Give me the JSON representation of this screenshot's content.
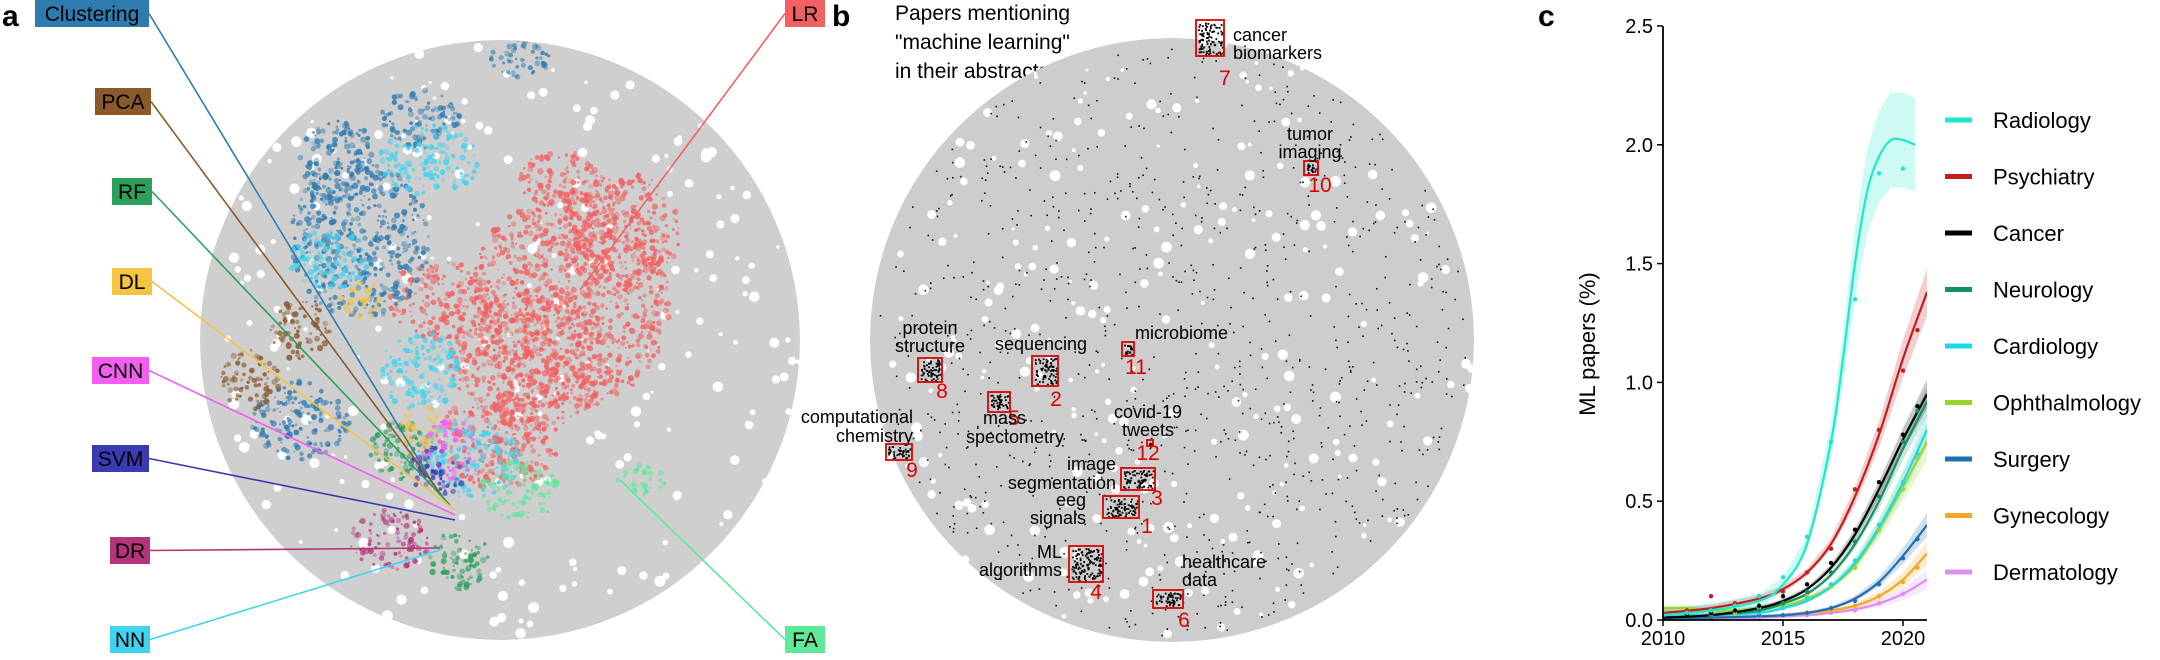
{
  "panel_a": {
    "letter": "a",
    "methods": [
      {
        "label": "Clustering",
        "color": "#2e7bb0"
      },
      {
        "label": "PCA",
        "color": "#8b5a2b"
      },
      {
        "label": "RF",
        "color": "#2ba05a"
      },
      {
        "label": "DL",
        "color": "#f5c242"
      },
      {
        "label": "CNN",
        "color": "#f15ef0"
      },
      {
        "label": "SVM",
        "color": "#3a3ab2"
      },
      {
        "label": "DR",
        "color": "#b5337a"
      },
      {
        "label": "NN",
        "color": "#3fd3f0"
      },
      {
        "label": "LR",
        "color": "#f26060"
      },
      {
        "label": "FA",
        "color": "#5fe89a"
      }
    ]
  },
  "panel_b": {
    "letter": "b",
    "title_lines": [
      "Papers mentioning",
      "\"machine learning\"",
      "in their abstracts"
    ],
    "topics": [
      {
        "num": "1",
        "lines": [
          "eeg",
          "signals"
        ]
      },
      {
        "num": "2",
        "lines": [
          "sequencing"
        ]
      },
      {
        "num": "3",
        "lines": [
          "image",
          "segmentation"
        ]
      },
      {
        "num": "4",
        "lines": [
          "ML",
          "algorithms"
        ]
      },
      {
        "num": "5",
        "lines": [
          "mass",
          "spectometry"
        ]
      },
      {
        "num": "6",
        "lines": [
          "healthcare",
          "data"
        ]
      },
      {
        "num": "7",
        "lines": [
          "cancer",
          "biomarkers"
        ]
      },
      {
        "num": "8",
        "lines": [
          "protein",
          "structure"
        ]
      },
      {
        "num": "9",
        "lines": [
          "computational",
          "chemistry"
        ]
      },
      {
        "num": "10",
        "lines": [
          "tumor",
          "imaging"
        ]
      },
      {
        "num": "11",
        "lines": [
          "microbiome"
        ]
      },
      {
        "num": "12",
        "lines": [
          "covid-19",
          "tweets"
        ]
      }
    ]
  },
  "chart_data": {
    "type": "line",
    "panel_letter": "c",
    "ylabel": "ML papers (%)",
    "xlim": [
      2010,
      2021
    ],
    "ylim": [
      0,
      2.5
    ],
    "xticks": [
      2010,
      2015,
      2020
    ],
    "yticks": [
      "0.0",
      "0.5",
      "1.0",
      "1.5",
      "2.0",
      "2.5"
    ],
    "legend_position": "right",
    "series": [
      {
        "name": "Radiology",
        "color": "#1de8c8",
        "points": [
          [
            2010,
            0.02
          ],
          [
            2011,
            0.03
          ],
          [
            2012,
            0.04
          ],
          [
            2013,
            0.06
          ],
          [
            2014,
            0.1
          ],
          [
            2015,
            0.18
          ],
          [
            2016,
            0.35
          ],
          [
            2017,
            0.75
          ],
          [
            2018,
            1.35
          ],
          [
            2019,
            1.88
          ],
          [
            2020,
            1.9
          ]
        ],
        "fit": [
          [
            2010,
            0.02
          ],
          [
            2012,
            0.04
          ],
          [
            2014,
            0.08
          ],
          [
            2015,
            0.15
          ],
          [
            2016,
            0.32
          ],
          [
            2017,
            0.75
          ],
          [
            2017.5,
            1.1
          ],
          [
            2018,
            1.5
          ],
          [
            2018.5,
            1.8
          ],
          [
            2019,
            1.95
          ],
          [
            2019.5,
            2.02
          ],
          [
            2020,
            2.02
          ],
          [
            2020.5,
            2.0
          ]
        ],
        "band": 0.2
      },
      {
        "name": "Psychiatry",
        "color": "#c21e1e",
        "points": [
          [
            2010,
            0.02
          ],
          [
            2011,
            0.04
          ],
          [
            2012,
            0.1
          ],
          [
            2013,
            0.07
          ],
          [
            2014,
            0.1
          ],
          [
            2015,
            0.12
          ],
          [
            2016,
            0.2
          ],
          [
            2017,
            0.3
          ],
          [
            2018,
            0.55
          ],
          [
            2019,
            0.8
          ],
          [
            2020,
            1.05
          ],
          [
            2020.6,
            1.22
          ]
        ],
        "fit": [
          [
            2010,
            0.03
          ],
          [
            2012,
            0.05
          ],
          [
            2014,
            0.09
          ],
          [
            2015,
            0.13
          ],
          [
            2016,
            0.2
          ],
          [
            2017,
            0.32
          ],
          [
            2018,
            0.52
          ],
          [
            2019,
            0.78
          ],
          [
            2020,
            1.1
          ],
          [
            2021,
            1.38
          ]
        ],
        "band": 0.1
      },
      {
        "name": "Cancer",
        "color": "#000000",
        "points": [
          [
            2010,
            0.01
          ],
          [
            2011,
            0.02
          ],
          [
            2012,
            0.03
          ],
          [
            2013,
            0.04
          ],
          [
            2014,
            0.06
          ],
          [
            2015,
            0.1
          ],
          [
            2016,
            0.15
          ],
          [
            2017,
            0.24
          ],
          [
            2018,
            0.38
          ],
          [
            2019,
            0.58
          ],
          [
            2020,
            0.78
          ],
          [
            2020.6,
            0.9
          ]
        ],
        "fit": [
          [
            2010,
            0.01
          ],
          [
            2012,
            0.02
          ],
          [
            2014,
            0.05
          ],
          [
            2015,
            0.08
          ],
          [
            2016,
            0.13
          ],
          [
            2017,
            0.22
          ],
          [
            2018,
            0.36
          ],
          [
            2019,
            0.55
          ],
          [
            2020,
            0.76
          ],
          [
            2021,
            0.95
          ]
        ],
        "band": 0.06
      },
      {
        "name": "Neurology",
        "color": "#148f6a",
        "points": [
          [
            2010,
            0.01
          ],
          [
            2012,
            0.02
          ],
          [
            2014,
            0.04
          ],
          [
            2015,
            0.07
          ],
          [
            2016,
            0.12
          ],
          [
            2017,
            0.2
          ],
          [
            2018,
            0.33
          ],
          [
            2019,
            0.52
          ],
          [
            2020,
            0.75
          ],
          [
            2020.6,
            0.88
          ]
        ],
        "fit": [
          [
            2010,
            0.01
          ],
          [
            2012,
            0.02
          ],
          [
            2014,
            0.04
          ],
          [
            2015,
            0.07
          ],
          [
            2016,
            0.11
          ],
          [
            2017,
            0.19
          ],
          [
            2018,
            0.32
          ],
          [
            2019,
            0.5
          ],
          [
            2020,
            0.72
          ],
          [
            2021,
            0.92
          ]
        ],
        "band": 0.06
      },
      {
        "name": "Cardiology",
        "color": "#1ed8e8",
        "points": [
          [
            2010,
            0.01
          ],
          [
            2012,
            0.02
          ],
          [
            2014,
            0.03
          ],
          [
            2015,
            0.05
          ],
          [
            2016,
            0.09
          ],
          [
            2017,
            0.15
          ],
          [
            2018,
            0.25
          ],
          [
            2019,
            0.4
          ],
          [
            2020,
            0.58
          ],
          [
            2020.6,
            0.7
          ]
        ],
        "fit": [
          [
            2010,
            0.01
          ],
          [
            2012,
            0.02
          ],
          [
            2014,
            0.03
          ],
          [
            2015,
            0.05
          ],
          [
            2016,
            0.08
          ],
          [
            2017,
            0.14
          ],
          [
            2018,
            0.24
          ],
          [
            2019,
            0.39
          ],
          [
            2020,
            0.58
          ],
          [
            2021,
            0.8
          ]
        ],
        "band": 0.07
      },
      {
        "name": "Ophthalmology",
        "color": "#9ad62a",
        "points": [
          [
            2010,
            0.05
          ],
          [
            2011,
            0.04
          ],
          [
            2012,
            0.03
          ],
          [
            2013,
            0.03
          ],
          [
            2014,
            0.05
          ],
          [
            2015,
            0.07
          ],
          [
            2016,
            0.1
          ],
          [
            2017,
            0.14
          ],
          [
            2018,
            0.22
          ],
          [
            2019,
            0.38
          ],
          [
            2020,
            0.55
          ],
          [
            2020.6,
            0.68
          ]
        ],
        "fit": [
          [
            2010,
            0.05
          ],
          [
            2011,
            0.05
          ],
          [
            2012,
            0.04
          ],
          [
            2013,
            0.04
          ],
          [
            2014,
            0.05
          ],
          [
            2015,
            0.06
          ],
          [
            2016,
            0.09
          ],
          [
            2017,
            0.14
          ],
          [
            2018,
            0.23
          ],
          [
            2019,
            0.38
          ],
          [
            2020,
            0.56
          ],
          [
            2021,
            0.75
          ]
        ],
        "band": 0.08
      },
      {
        "name": "Surgery",
        "color": "#1f6fb2",
        "points": [
          [
            2010,
            0.01
          ],
          [
            2012,
            0.01
          ],
          [
            2014,
            0.02
          ],
          [
            2015,
            0.02
          ],
          [
            2016,
            0.03
          ],
          [
            2017,
            0.05
          ],
          [
            2018,
            0.08
          ],
          [
            2019,
            0.15
          ],
          [
            2020,
            0.26
          ],
          [
            2020.6,
            0.34
          ]
        ],
        "fit": [
          [
            2010,
            0.005
          ],
          [
            2012,
            0.01
          ],
          [
            2014,
            0.015
          ],
          [
            2015,
            0.02
          ],
          [
            2016,
            0.03
          ],
          [
            2017,
            0.05
          ],
          [
            2018,
            0.09
          ],
          [
            2019,
            0.16
          ],
          [
            2020,
            0.27
          ],
          [
            2021,
            0.4
          ]
        ],
        "band": 0.05
      },
      {
        "name": "Gynecology",
        "color": "#f5a623",
        "points": [
          [
            2010,
            0.01
          ],
          [
            2012,
            0.01
          ],
          [
            2014,
            0.02
          ],
          [
            2015,
            0.02
          ],
          [
            2016,
            0.03
          ],
          [
            2017,
            0.04
          ],
          [
            2018,
            0.06
          ],
          [
            2019,
            0.1
          ],
          [
            2020,
            0.16
          ],
          [
            2020.6,
            0.22
          ]
        ],
        "fit": [
          [
            2010,
            0.005
          ],
          [
            2012,
            0.01
          ],
          [
            2014,
            0.015
          ],
          [
            2015,
            0.02
          ],
          [
            2016,
            0.03
          ],
          [
            2017,
            0.04
          ],
          [
            2018,
            0.06
          ],
          [
            2019,
            0.1
          ],
          [
            2020,
            0.17
          ],
          [
            2021,
            0.28
          ]
        ],
        "band": 0.05
      },
      {
        "name": "Dermatology",
        "color": "#d98ef0",
        "points": [
          [
            2010,
            0.01
          ],
          [
            2012,
            0.01
          ],
          [
            2014,
            0.01
          ],
          [
            2016,
            0.02
          ],
          [
            2017,
            0.03
          ],
          [
            2018,
            0.04
          ],
          [
            2019,
            0.07
          ],
          [
            2020,
            0.11
          ]
        ],
        "fit": [
          [
            2010,
            0.005
          ],
          [
            2012,
            0.008
          ],
          [
            2014,
            0.01
          ],
          [
            2016,
            0.02
          ],
          [
            2017,
            0.03
          ],
          [
            2018,
            0.045
          ],
          [
            2019,
            0.07
          ],
          [
            2020,
            0.11
          ],
          [
            2021,
            0.17
          ]
        ],
        "band": 0.04
      }
    ]
  }
}
